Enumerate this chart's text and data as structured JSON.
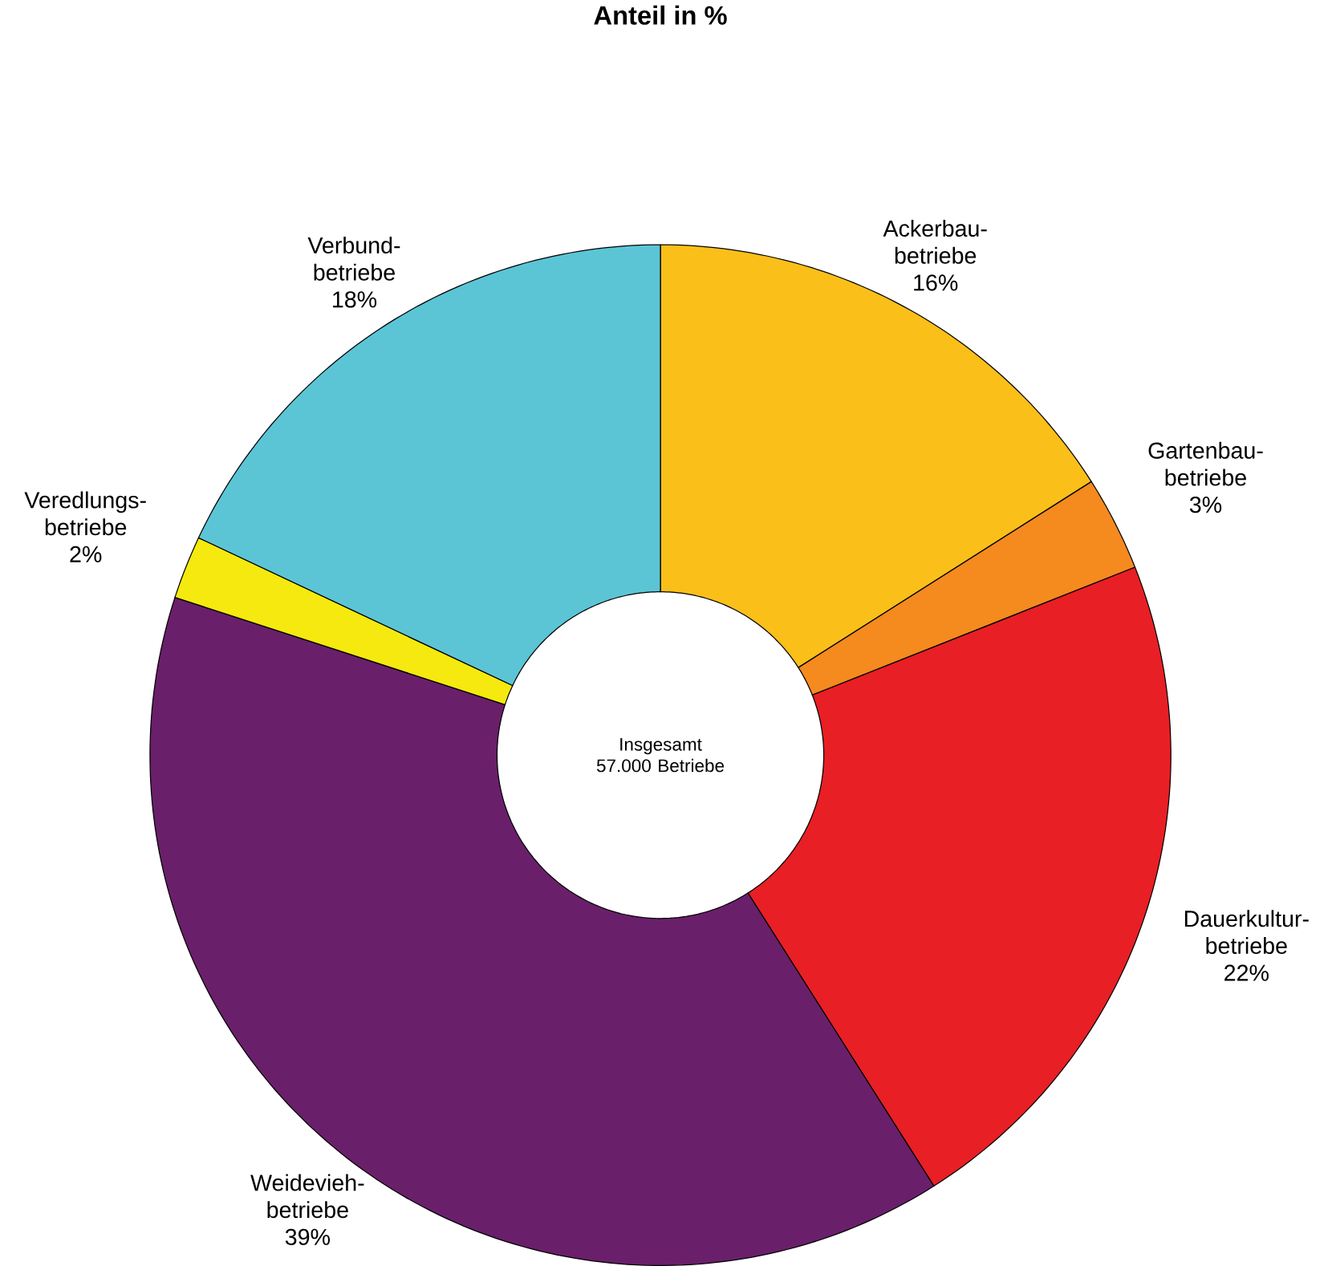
{
  "chart_data": {
    "type": "donut",
    "title": "Anteil in %",
    "categories": [
      "Ackerbau-betriebe",
      "Gartenbau-betriebe",
      "Dauerkultur-betriebe",
      "Weidevieh-betriebe",
      "Veredlungs-betriebe",
      "Verbund-betriebe"
    ],
    "values": [
      16,
      3,
      22,
      39,
      2,
      18
    ],
    "value_labels": [
      "16%",
      "3%",
      "22%",
      "39%",
      "2%",
      "18%"
    ],
    "colors": [
      "#fbbf1a",
      "#f58a1f",
      "#e81f25",
      "#6a1f6a",
      "#f5e90f",
      "#5bc5d6"
    ],
    "annotations": [
      "Insgesamt 57.000 Betriebe"
    ]
  }
}
